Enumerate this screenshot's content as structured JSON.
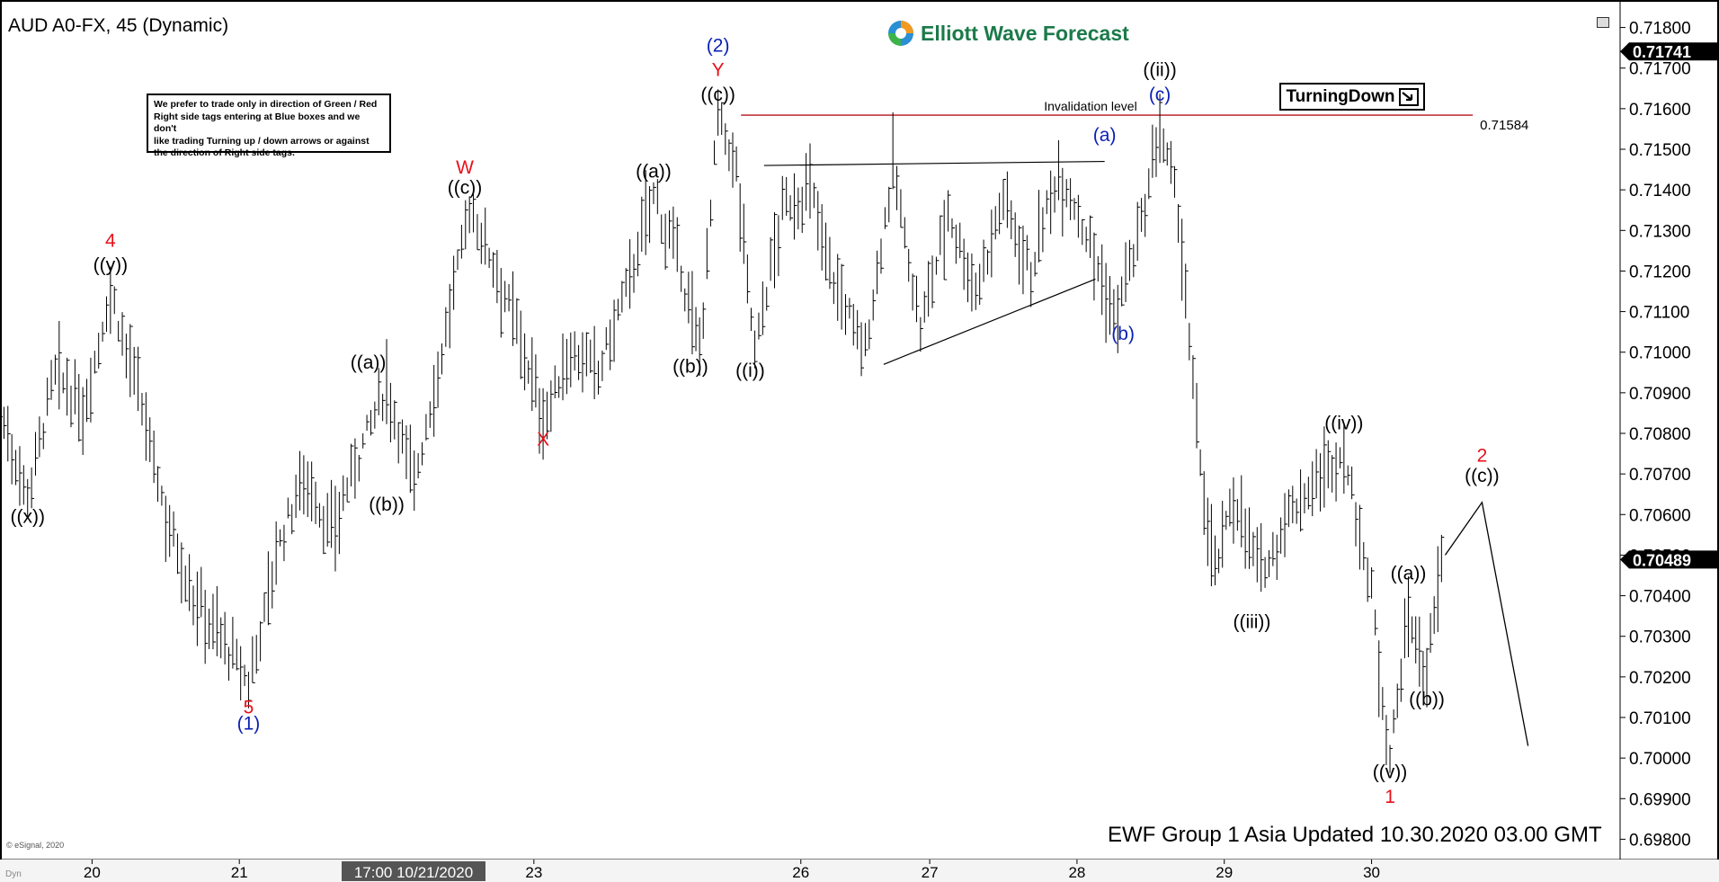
{
  "window": {
    "title": "AUD A0-FX, 45 (Dynamic)",
    "logo_text": "Elliott Wave Forecast",
    "footer": "EWF Group 1 Asia Updated 10.30.2020 03.00 GMT",
    "copyright": "© eSignal, 2020",
    "corner_label": "Dyn"
  },
  "disclaimer": {
    "lines": [
      "We prefer to trade only in direction of Green / Red",
      "Right side tags entering at Blue boxes and we don't",
      "like trading Turning up / down arrows or against",
      "the direction of Right side tags."
    ]
  },
  "turning_tag": {
    "label": "TurningDown",
    "icon": "arrow-down-right-icon"
  },
  "colors": {
    "price": "#000000",
    "red_label": "#e8111a",
    "blue_label": "#0a1fb5",
    "invalidation_line": "#b5121b",
    "price_badge": "#000000",
    "current_badge": "#000000"
  },
  "chart_data": {
    "type": "line",
    "title": "AUD A0-FX, 45 (Dynamic)",
    "x_ticks": [
      "20",
      "21",
      "23",
      "26",
      "27",
      "28",
      "29",
      "30"
    ],
    "x_highlight_label": "17:00 10/21/2020",
    "ylim": [
      0.6975,
      0.7185
    ],
    "y_ticks": [
      0.718,
      0.717,
      0.716,
      0.715,
      0.714,
      0.713,
      0.712,
      0.711,
      0.71,
      0.709,
      0.708,
      0.707,
      0.706,
      0.705,
      0.704,
      0.703,
      0.702,
      0.701,
      0.7,
      0.699,
      0.698
    ],
    "y_tick_labels": [
      "0.71800",
      "0.71700",
      "0.71600",
      "0.71500",
      "0.71400",
      "0.71300",
      "0.71200",
      "0.71100",
      "0.71000",
      "0.70900",
      "0.70800",
      "0.70700",
      "0.70600",
      "0.70500",
      "0.70400",
      "0.70300",
      "0.70200",
      "0.70100",
      "0.70000",
      "0.69900",
      "0.69800"
    ],
    "price_badges": [
      {
        "label": "0.71741",
        "value": 0.71741
      },
      {
        "label": "0.70489",
        "value": 0.70489
      }
    ],
    "invalidation": {
      "label": "Invalidation level",
      "value": 0.71584,
      "value_label": "0.71584"
    },
    "wave_points": [
      {
        "x": 0.0,
        "y": 0.7085
      },
      {
        "x": 0.3,
        "y": 0.7065
      },
      {
        "x": 0.6,
        "y": 0.7095
      },
      {
        "x": 0.9,
        "y": 0.7085
      },
      {
        "x": 1.2,
        "y": 0.7115
      },
      {
        "x": 1.5,
        "y": 0.709
      },
      {
        "x": 1.8,
        "y": 0.706
      },
      {
        "x": 2.1,
        "y": 0.704
      },
      {
        "x": 2.4,
        "y": 0.703
      },
      {
        "x": 2.7,
        "y": 0.7018
      },
      {
        "x": 3.0,
        "y": 0.705
      },
      {
        "x": 3.3,
        "y": 0.707
      },
      {
        "x": 3.6,
        "y": 0.7055
      },
      {
        "x": 3.9,
        "y": 0.7075
      },
      {
        "x": 4.2,
        "y": 0.7092
      },
      {
        "x": 4.5,
        "y": 0.7068
      },
      {
        "x": 4.8,
        "y": 0.71
      },
      {
        "x": 5.1,
        "y": 0.7136
      },
      {
        "x": 5.4,
        "y": 0.712
      },
      {
        "x": 5.7,
        "y": 0.71
      },
      {
        "x": 5.9,
        "y": 0.7083
      },
      {
        "x": 6.2,
        "y": 0.71
      },
      {
        "x": 6.5,
        "y": 0.7095
      },
      {
        "x": 6.8,
        "y": 0.7115
      },
      {
        "x": 7.1,
        "y": 0.7139
      },
      {
        "x": 7.4,
        "y": 0.712
      },
      {
        "x": 7.6,
        "y": 0.71
      },
      {
        "x": 7.8,
        "y": 0.7158
      },
      {
        "x": 8.0,
        "y": 0.7145
      },
      {
        "x": 8.2,
        "y": 0.71
      },
      {
        "x": 8.5,
        "y": 0.7135
      },
      {
        "x": 8.8,
        "y": 0.714
      },
      {
        "x": 9.1,
        "y": 0.7115
      },
      {
        "x": 9.4,
        "y": 0.71
      },
      {
        "x": 9.7,
        "y": 0.7146
      },
      {
        "x": 10.0,
        "y": 0.7105
      },
      {
        "x": 10.3,
        "y": 0.7135
      },
      {
        "x": 10.6,
        "y": 0.7115
      },
      {
        "x": 10.9,
        "y": 0.7138
      },
      {
        "x": 11.2,
        "y": 0.712
      },
      {
        "x": 11.5,
        "y": 0.7145
      },
      {
        "x": 11.8,
        "y": 0.713
      },
      {
        "x": 12.1,
        "y": 0.7108
      },
      {
        "x": 12.4,
        "y": 0.713
      },
      {
        "x": 12.6,
        "y": 0.7155
      },
      {
        "x": 12.8,
        "y": 0.7135
      },
      {
        "x": 13.0,
        "y": 0.708
      },
      {
        "x": 13.2,
        "y": 0.7045
      },
      {
        "x": 13.4,
        "y": 0.7065
      },
      {
        "x": 13.7,
        "y": 0.7045
      },
      {
        "x": 14.0,
        "y": 0.706
      },
      {
        "x": 14.3,
        "y": 0.7068
      },
      {
        "x": 14.6,
        "y": 0.7075
      },
      {
        "x": 14.9,
        "y": 0.704
      },
      {
        "x": 15.1,
        "y": 0.7
      },
      {
        "x": 15.3,
        "y": 0.7035
      },
      {
        "x": 15.5,
        "y": 0.702
      },
      {
        "x": 15.7,
        "y": 0.7055
      }
    ],
    "wave_labels": [
      {
        "text": "4",
        "color": "red",
        "x": 1.2,
        "y": 0.7126
      },
      {
        "text": "((y))",
        "color": "black",
        "x": 1.2,
        "y": 0.712
      },
      {
        "text": "((x))",
        "color": "black",
        "x": 0.3,
        "y": 0.7058
      },
      {
        "text": "5",
        "color": "red",
        "x": 2.7,
        "y": 0.7011
      },
      {
        "text": "(1)",
        "color": "blue",
        "x": 2.7,
        "y": 0.7007
      },
      {
        "text": "((a))",
        "color": "black",
        "x": 4.0,
        "y": 0.7096
      },
      {
        "text": "((b))",
        "color": "black",
        "x": 4.2,
        "y": 0.7061
      },
      {
        "text": "W",
        "color": "red",
        "x": 5.05,
        "y": 0.7144
      },
      {
        "text": "((c))",
        "color": "black",
        "x": 5.05,
        "y": 0.7139
      },
      {
        "text": "X",
        "color": "red",
        "x": 5.9,
        "y": 0.7077
      },
      {
        "text": "((a))",
        "color": "black",
        "x": 7.1,
        "y": 0.7143
      },
      {
        "text": "((b))",
        "color": "black",
        "x": 7.5,
        "y": 0.7095
      },
      {
        "text": "(2)",
        "color": "blue",
        "x": 7.8,
        "y": 0.7174
      },
      {
        "text": "Y",
        "color": "red",
        "x": 7.8,
        "y": 0.7168
      },
      {
        "text": "((c))",
        "color": "black",
        "x": 7.8,
        "y": 0.7162
      },
      {
        "text": "((i))",
        "color": "black",
        "x": 8.15,
        "y": 0.7094
      },
      {
        "text": "(a)",
        "color": "blue",
        "x": 12.0,
        "y": 0.7152
      },
      {
        "text": "(b)",
        "color": "blue",
        "x": 12.2,
        "y": 0.7103
      },
      {
        "text": "((ii))",
        "color": "black",
        "x": 12.6,
        "y": 0.7168
      },
      {
        "text": "(c)",
        "color": "blue",
        "x": 12.6,
        "y": 0.7162
      },
      {
        "text": "((iii))",
        "color": "black",
        "x": 13.6,
        "y": 0.7032
      },
      {
        "text": "((iv))",
        "color": "black",
        "x": 14.6,
        "y": 0.7081
      },
      {
        "text": "((v))",
        "color": "black",
        "x": 15.1,
        "y": 0.6995
      },
      {
        "text": "1",
        "color": "red",
        "x": 15.1,
        "y": 0.6989
      },
      {
        "text": "((a))",
        "color": "black",
        "x": 15.3,
        "y": 0.7044
      },
      {
        "text": "((b))",
        "color": "black",
        "x": 15.5,
        "y": 0.7013
      },
      {
        "text": "2",
        "color": "red",
        "x": 16.1,
        "y": 0.7073
      },
      {
        "text": "((c))",
        "color": "black",
        "x": 16.1,
        "y": 0.7068
      }
    ],
    "projection": [
      {
        "x": 15.7,
        "y": 0.705
      },
      {
        "x": 16.1,
        "y": 0.7063
      },
      {
        "x": 16.6,
        "y": 0.7003
      }
    ],
    "triangle_lines": [
      {
        "x1": 8.3,
        "y1": 0.7146,
        "x2": 12.0,
        "y2": 0.7147
      },
      {
        "x1": 9.6,
        "y1": 0.7097,
        "x2": 11.9,
        "y2": 0.7118
      }
    ]
  }
}
